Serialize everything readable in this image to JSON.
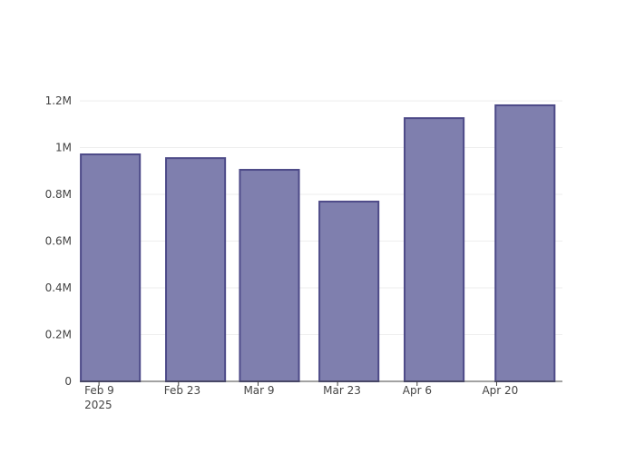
{
  "chart_data": {
    "type": "bar",
    "x": [
      "2025-02-11",
      "2025-02-26",
      "2025-03-11",
      "2025-03-25",
      "2025-04-09",
      "2025-04-25"
    ],
    "values": [
      971000,
      955000,
      905000,
      769000,
      1126000,
      1181000
    ],
    "color": "#7f7fae",
    "line_color": "#4d4a88",
    "xlim": [
      "2025-02-05T15:00",
      "2025-05-01T14:00"
    ],
    "xticks": [
      {
        "value": "2025-02-09",
        "label": "Feb 9\n2025"
      },
      {
        "value": "2025-02-23",
        "label": "Feb 23"
      },
      {
        "value": "2025-03-09",
        "label": "Mar 9"
      },
      {
        "value": "2025-03-23",
        "label": "Mar 23"
      },
      {
        "value": "2025-04-06",
        "label": "Apr 6"
      },
      {
        "value": "2025-04-20",
        "label": "Apr 20"
      }
    ],
    "ylim": [
      0,
      1243000
    ],
    "yticks": [
      0,
      {
        "value": 200000,
        "label": "0.2M"
      },
      {
        "value": 400000,
        "label": "0.4M"
      },
      {
        "value": 600000,
        "label": "0.6M"
      },
      {
        "value": 800000,
        "label": "0.8M"
      },
      {
        "value": 1000000,
        "label": "1M"
      },
      {
        "value": 1200000,
        "label": "1.2M"
      }
    ],
    "grid": true
  }
}
